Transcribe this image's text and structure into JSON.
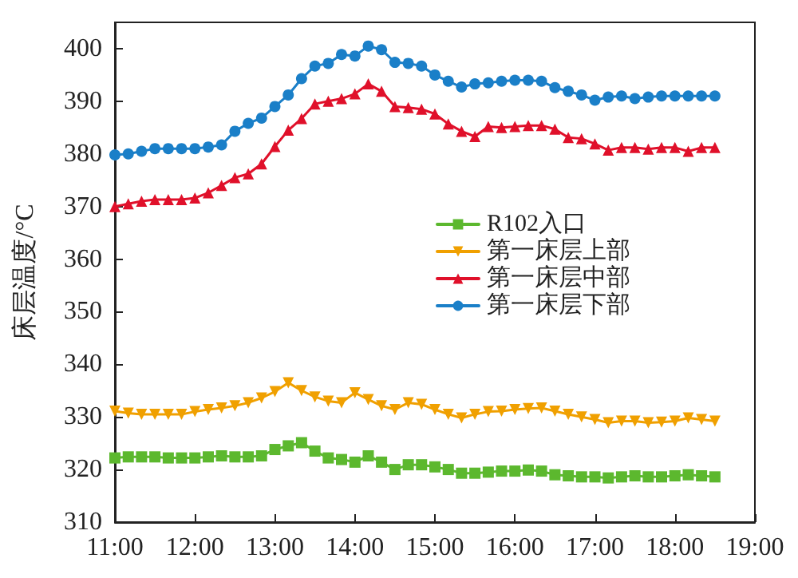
{
  "chart_data": {
    "type": "line",
    "ylabel": "床层温度/°C",
    "x": [
      11,
      11.167,
      11.333,
      11.5,
      11.667,
      11.833,
      12,
      12.167,
      12.333,
      12.5,
      12.667,
      12.833,
      13,
      13.167,
      13.333,
      13.5,
      13.667,
      13.833,
      14,
      14.167,
      14.333,
      14.5,
      14.667,
      14.833,
      15,
      15.167,
      15.333,
      15.5,
      15.667,
      15.833,
      16,
      16.167,
      16.333,
      16.5,
      16.667,
      16.833,
      17,
      17.167,
      17.333,
      17.5,
      17.667,
      17.833,
      18,
      18.167,
      18.333,
      18.5
    ],
    "series": [
      {
        "name": "R102入口",
        "color": "#5cb82e",
        "marker": "square",
        "values": [
          322.2,
          322.4,
          322.4,
          322.4,
          322.2,
          322.2,
          322.2,
          322.4,
          322.6,
          322.4,
          322.4,
          322.6,
          323.8,
          324.5,
          325.1,
          323.5,
          322.2,
          321.9,
          321.4,
          322.6,
          321.4,
          320,
          320.9,
          320.9,
          320.5,
          320,
          319.3,
          319.3,
          319.5,
          319.7,
          319.7,
          319.9,
          319.7,
          319,
          318.8,
          318.6,
          318.6,
          318.4,
          318.6,
          318.8,
          318.6,
          318.6,
          318.8,
          319,
          318.8,
          318.6
        ]
      },
      {
        "name": "第一床层上部",
        "color": "#f0a000",
        "marker": "triangle-down",
        "values": [
          331.1,
          330.7,
          330.5,
          330.5,
          330.5,
          330.5,
          331,
          331.4,
          331.7,
          332.1,
          332.7,
          333.6,
          334.8,
          336.5,
          335,
          333.8,
          333,
          332.7,
          334.6,
          333.3,
          332.1,
          331.4,
          332.7,
          332.4,
          331.4,
          330.5,
          329.8,
          330.5,
          331,
          331.1,
          331.4,
          331.6,
          331.7,
          331.1,
          330.5,
          330,
          329.5,
          328.9,
          329.2,
          329.2,
          328.9,
          329,
          329.2,
          329.8,
          329.5,
          329.2
        ]
      },
      {
        "name": "第一床层中部",
        "color": "#e0102a",
        "marker": "triangle",
        "values": [
          370,
          370.5,
          371,
          371.3,
          371.3,
          371.3,
          371.6,
          372.6,
          374,
          375.5,
          376.2,
          378.1,
          381.4,
          384.5,
          386.7,
          389.5,
          390,
          390.5,
          391.4,
          393.3,
          391.9,
          389,
          388.8,
          388.5,
          387.6,
          385.7,
          384.3,
          383.3,
          385.2,
          385,
          385.2,
          385.4,
          385.4,
          384.7,
          383.1,
          382.9,
          381.9,
          380.7,
          381.2,
          381.2,
          380.9,
          381.2,
          381.2,
          380.5,
          381.2,
          381.2
        ]
      },
      {
        "name": "第一床层下部",
        "color": "#1a7fc8",
        "marker": "circle",
        "values": [
          379.8,
          380,
          380.5,
          381,
          381,
          381,
          381,
          381.3,
          381.7,
          384.3,
          385.8,
          386.8,
          389,
          391.2,
          394.3,
          396.7,
          397.2,
          398.9,
          398.6,
          400.5,
          399.8,
          397.4,
          397.2,
          396.7,
          395,
          393.8,
          392.7,
          393.3,
          393.5,
          393.8,
          394,
          394,
          393.8,
          392.6,
          391.9,
          391.2,
          390.2,
          390.8,
          391,
          390.5,
          390.8,
          391,
          391,
          391,
          391,
          391
        ]
      }
    ],
    "xlim": [
      11,
      19
    ],
    "xticks": [
      {
        "value": 11,
        "label": "11:00"
      },
      {
        "value": 12,
        "label": "12:00"
      },
      {
        "value": 13,
        "label": "13:00"
      },
      {
        "value": 14,
        "label": "14:00"
      },
      {
        "value": 15,
        "label": "15:00"
      },
      {
        "value": 16,
        "label": "16:00"
      },
      {
        "value": 17,
        "label": "17:00"
      },
      {
        "value": 18,
        "label": "18:00"
      },
      {
        "value": 19,
        "label": "19:00"
      }
    ],
    "ylim": [
      310,
      405
    ],
    "yticks": [
      310,
      320,
      330,
      340,
      350,
      360,
      370,
      380,
      390,
      400
    ],
    "grid": false,
    "legend": "right",
    "line_style": "solid"
  }
}
